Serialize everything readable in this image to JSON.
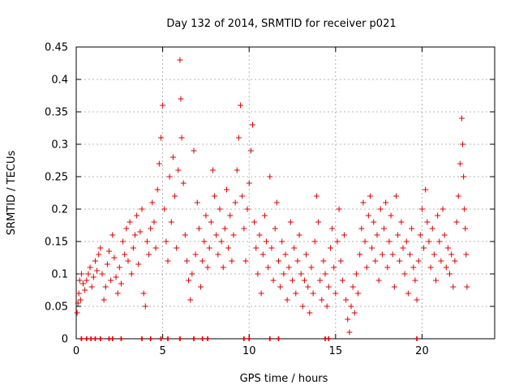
{
  "chart_data": {
    "type": "scatter",
    "title": "Day 132 of 2014, SRMTID for receiver p021",
    "xlabel": "GPS time / hours",
    "ylabel": "SRMTID / TECUs",
    "xlim": [
      0,
      24.2
    ],
    "ylim": [
      0,
      0.45
    ],
    "x_ticks": [
      0,
      5,
      10,
      15,
      20
    ],
    "y_ticks": [
      0,
      0.05,
      0.1,
      0.15,
      0.2,
      0.25,
      0.3,
      0.35,
      0.4,
      0.45
    ],
    "x_tick_labels": [
      "0",
      "5",
      "10",
      "15",
      "20"
    ],
    "y_tick_labels": [
      "0",
      "0.05",
      "0.1",
      "0.15",
      "0.2",
      "0.25",
      "0.3",
      "0.35",
      "0.4",
      "0.45"
    ],
    "grid": true,
    "marker": "+",
    "color": "#e00000",
    "series": [
      {
        "name": "SRMTID",
        "points": [
          [
            0.05,
            0.04
          ],
          [
            0.1,
            0.055
          ],
          [
            0.15,
            0.07
          ],
          [
            0.2,
            0.09
          ],
          [
            0.25,
            0.06
          ],
          [
            0.3,
            0.1
          ],
          [
            0.4,
            0.085
          ],
          [
            0.5,
            0.075
          ],
          [
            0.6,
            0.09
          ],
          [
            0.7,
            0.1
          ],
          [
            0.8,
            0.11
          ],
          [
            0.9,
            0.08
          ],
          [
            1.0,
            0.095
          ],
          [
            1.1,
            0.12
          ],
          [
            1.2,
            0.105
          ],
          [
            1.3,
            0.13
          ],
          [
            1.4,
            0.14
          ],
          [
            1.5,
            0.1
          ],
          [
            1.6,
            0.06
          ],
          [
            1.7,
            0.08
          ],
          [
            1.8,
            0.115
          ],
          [
            1.9,
            0.135
          ],
          [
            2.0,
            0.09
          ],
          [
            2.1,
            0.16
          ],
          [
            2.2,
            0.125
          ],
          [
            2.3,
            0.095
          ],
          [
            2.4,
            0.07
          ],
          [
            2.5,
            0.11
          ],
          [
            2.6,
            0.085
          ],
          [
            2.7,
            0.15
          ],
          [
            2.8,
            0.13
          ],
          [
            2.9,
            0.17
          ],
          [
            3.0,
            0.12
          ],
          [
            3.1,
            0.18
          ],
          [
            3.2,
            0.1
          ],
          [
            3.3,
            0.14
          ],
          [
            3.4,
            0.16
          ],
          [
            3.5,
            0.19
          ],
          [
            3.6,
            0.115
          ],
          [
            3.7,
            0.165
          ],
          [
            3.8,
            0.2
          ],
          [
            3.9,
            0.07
          ],
          [
            4.0,
            0.05
          ],
          [
            4.1,
            0.15
          ],
          [
            4.2,
            0.13
          ],
          [
            4.3,
            0.17
          ],
          [
            4.4,
            0.21
          ],
          [
            4.5,
            0.18
          ],
          [
            4.6,
            0.14
          ],
          [
            4.7,
            0.23
          ],
          [
            4.8,
            0.27
          ],
          [
            4.9,
            0.31
          ],
          [
            5.0,
            0.36
          ],
          [
            5.1,
            0.2
          ],
          [
            5.2,
            0.15
          ],
          [
            5.3,
            0.12
          ],
          [
            5.4,
            0.25
          ],
          [
            5.5,
            0.18
          ],
          [
            5.6,
            0.28
          ],
          [
            5.7,
            0.22
          ],
          [
            5.8,
            0.14
          ],
          [
            5.9,
            0.26
          ],
          [
            6.0,
            0.43
          ],
          [
            6.05,
            0.37
          ],
          [
            6.1,
            0.31
          ],
          [
            6.2,
            0.24
          ],
          [
            6.3,
            0.16
          ],
          [
            6.4,
            0.12
          ],
          [
            6.5,
            0.09
          ],
          [
            6.6,
            0.06
          ],
          [
            6.7,
            0.1
          ],
          [
            6.8,
            0.29
          ],
          [
            6.9,
            0.13
          ],
          [
            7.0,
            0.21
          ],
          [
            7.1,
            0.17
          ],
          [
            7.2,
            0.08
          ],
          [
            7.3,
            0.12
          ],
          [
            7.4,
            0.15
          ],
          [
            7.5,
            0.19
          ],
          [
            7.6,
            0.11
          ],
          [
            7.7,
            0.14
          ],
          [
            7.8,
            0.18
          ],
          [
            7.9,
            0.26
          ],
          [
            8.0,
            0.22
          ],
          [
            8.1,
            0.16
          ],
          [
            8.2,
            0.13
          ],
          [
            8.3,
            0.2
          ],
          [
            8.4,
            0.15
          ],
          [
            8.5,
            0.11
          ],
          [
            8.6,
            0.17
          ],
          [
            8.7,
            0.23
          ],
          [
            8.8,
            0.14
          ],
          [
            8.9,
            0.19
          ],
          [
            9.0,
            0.12
          ],
          [
            9.1,
            0.16
          ],
          [
            9.2,
            0.21
          ],
          [
            9.3,
            0.26
          ],
          [
            9.4,
            0.31
          ],
          [
            9.5,
            0.36
          ],
          [
            9.6,
            0.22
          ],
          [
            9.7,
            0.17
          ],
          [
            9.8,
            0.12
          ],
          [
            9.9,
            0.2
          ],
          [
            10.0,
            0.24
          ],
          [
            10.1,
            0.29
          ],
          [
            10.2,
            0.33
          ],
          [
            10.3,
            0.18
          ],
          [
            10.4,
            0.14
          ],
          [
            10.5,
            0.1
          ],
          [
            10.6,
            0.16
          ],
          [
            10.7,
            0.07
          ],
          [
            10.8,
            0.13
          ],
          [
            10.9,
            0.19
          ],
          [
            11.0,
            0.15
          ],
          [
            11.1,
            0.11
          ],
          [
            11.2,
            0.25
          ],
          [
            11.3,
            0.14
          ],
          [
            11.4,
            0.09
          ],
          [
            11.5,
            0.17
          ],
          [
            11.6,
            0.21
          ],
          [
            11.7,
            0.12
          ],
          [
            11.8,
            0.08
          ],
          [
            11.9,
            0.15
          ],
          [
            12.0,
            0.1
          ],
          [
            12.1,
            0.13
          ],
          [
            12.2,
            0.06
          ],
          [
            12.3,
            0.11
          ],
          [
            12.4,
            0.18
          ],
          [
            12.5,
            0.09
          ],
          [
            12.6,
            0.14
          ],
          [
            12.7,
            0.07
          ],
          [
            12.8,
            0.12
          ],
          [
            12.9,
            0.16
          ],
          [
            13.0,
            0.1
          ],
          [
            13.1,
            0.05
          ],
          [
            13.2,
            0.09
          ],
          [
            13.3,
            0.13
          ],
          [
            13.4,
            0.08
          ],
          [
            13.5,
            0.04
          ],
          [
            13.6,
            0.11
          ],
          [
            13.7,
            0.07
          ],
          [
            13.8,
            0.15
          ],
          [
            13.9,
            0.22
          ],
          [
            14.0,
            0.18
          ],
          [
            14.1,
            0.09
          ],
          [
            14.2,
            0.06
          ],
          [
            14.3,
            0.12
          ],
          [
            14.4,
            0.1
          ],
          [
            14.5,
            0.05
          ],
          [
            14.6,
            0.08
          ],
          [
            14.7,
            0.14
          ],
          [
            14.8,
            0.17
          ],
          [
            14.9,
            0.11
          ],
          [
            15.0,
            0.07
          ],
          [
            15.1,
            0.15
          ],
          [
            15.2,
            0.2
          ],
          [
            15.3,
            0.12
          ],
          [
            15.4,
            0.09
          ],
          [
            15.5,
            0.16
          ],
          [
            15.6,
            0.06
          ],
          [
            15.7,
            0.03
          ],
          [
            15.8,
            0.01
          ],
          [
            15.9,
            0.05
          ],
          [
            16.0,
            0.08
          ],
          [
            16.1,
            0.04
          ],
          [
            16.2,
            0.1
          ],
          [
            16.3,
            0.07
          ],
          [
            16.4,
            0.13
          ],
          [
            16.5,
            0.17
          ],
          [
            16.6,
            0.21
          ],
          [
            16.7,
            0.15
          ],
          [
            16.8,
            0.11
          ],
          [
            16.9,
            0.19
          ],
          [
            17.0,
            0.22
          ],
          [
            17.1,
            0.14
          ],
          [
            17.2,
            0.18
          ],
          [
            17.3,
            0.12
          ],
          [
            17.4,
            0.16
          ],
          [
            17.5,
            0.09
          ],
          [
            17.6,
            0.2
          ],
          [
            17.7,
            0.13
          ],
          [
            17.8,
            0.17
          ],
          [
            17.9,
            0.21
          ],
          [
            18.0,
            0.11
          ],
          [
            18.1,
            0.15
          ],
          [
            18.2,
            0.19
          ],
          [
            18.3,
            0.13
          ],
          [
            18.4,
            0.08
          ],
          [
            18.5,
            0.22
          ],
          [
            18.6,
            0.16
          ],
          [
            18.7,
            0.12
          ],
          [
            18.8,
            0.18
          ],
          [
            18.9,
            0.14
          ],
          [
            19.0,
            0.1
          ],
          [
            19.1,
            0.15
          ],
          [
            19.2,
            0.07
          ],
          [
            19.3,
            0.13
          ],
          [
            19.4,
            0.17
          ],
          [
            19.5,
            0.11
          ],
          [
            19.6,
            0.09
          ],
          [
            19.7,
            0.06
          ],
          [
            19.8,
            0.12
          ],
          [
            19.9,
            0.16
          ],
          [
            20.0,
            0.2
          ],
          [
            20.1,
            0.14
          ],
          [
            20.2,
            0.23
          ],
          [
            20.3,
            0.18
          ],
          [
            20.4,
            0.15
          ],
          [
            20.5,
            0.11
          ],
          [
            20.6,
            0.17
          ],
          [
            20.7,
            0.13
          ],
          [
            20.8,
            0.09
          ],
          [
            20.9,
            0.19
          ],
          [
            21.0,
            0.15
          ],
          [
            21.1,
            0.12
          ],
          [
            21.2,
            0.2
          ],
          [
            21.3,
            0.16
          ],
          [
            21.4,
            0.11
          ],
          [
            21.5,
            0.14
          ],
          [
            21.6,
            0.1
          ],
          [
            21.7,
            0.13
          ],
          [
            21.8,
            0.08
          ],
          [
            21.9,
            0.12
          ],
          [
            22.0,
            0.18
          ],
          [
            22.1,
            0.22
          ],
          [
            22.2,
            0.27
          ],
          [
            22.3,
            0.34
          ],
          [
            22.35,
            0.3
          ],
          [
            22.4,
            0.25
          ],
          [
            22.45,
            0.2
          ],
          [
            22.5,
            0.17
          ],
          [
            22.55,
            0.13
          ],
          [
            22.6,
            0.08
          ]
        ]
      }
    ],
    "zero_markers_x": [
      0.3,
      0.6,
      0.85,
      1.1,
      1.4,
      1.9,
      2.1,
      2.6,
      3.8,
      4.3,
      4.9,
      5.3,
      6.0,
      6.8,
      7.3,
      7.6,
      9.7,
      10.0,
      11.2,
      11.7,
      14.4,
      14.6,
      19.7
    ]
  }
}
